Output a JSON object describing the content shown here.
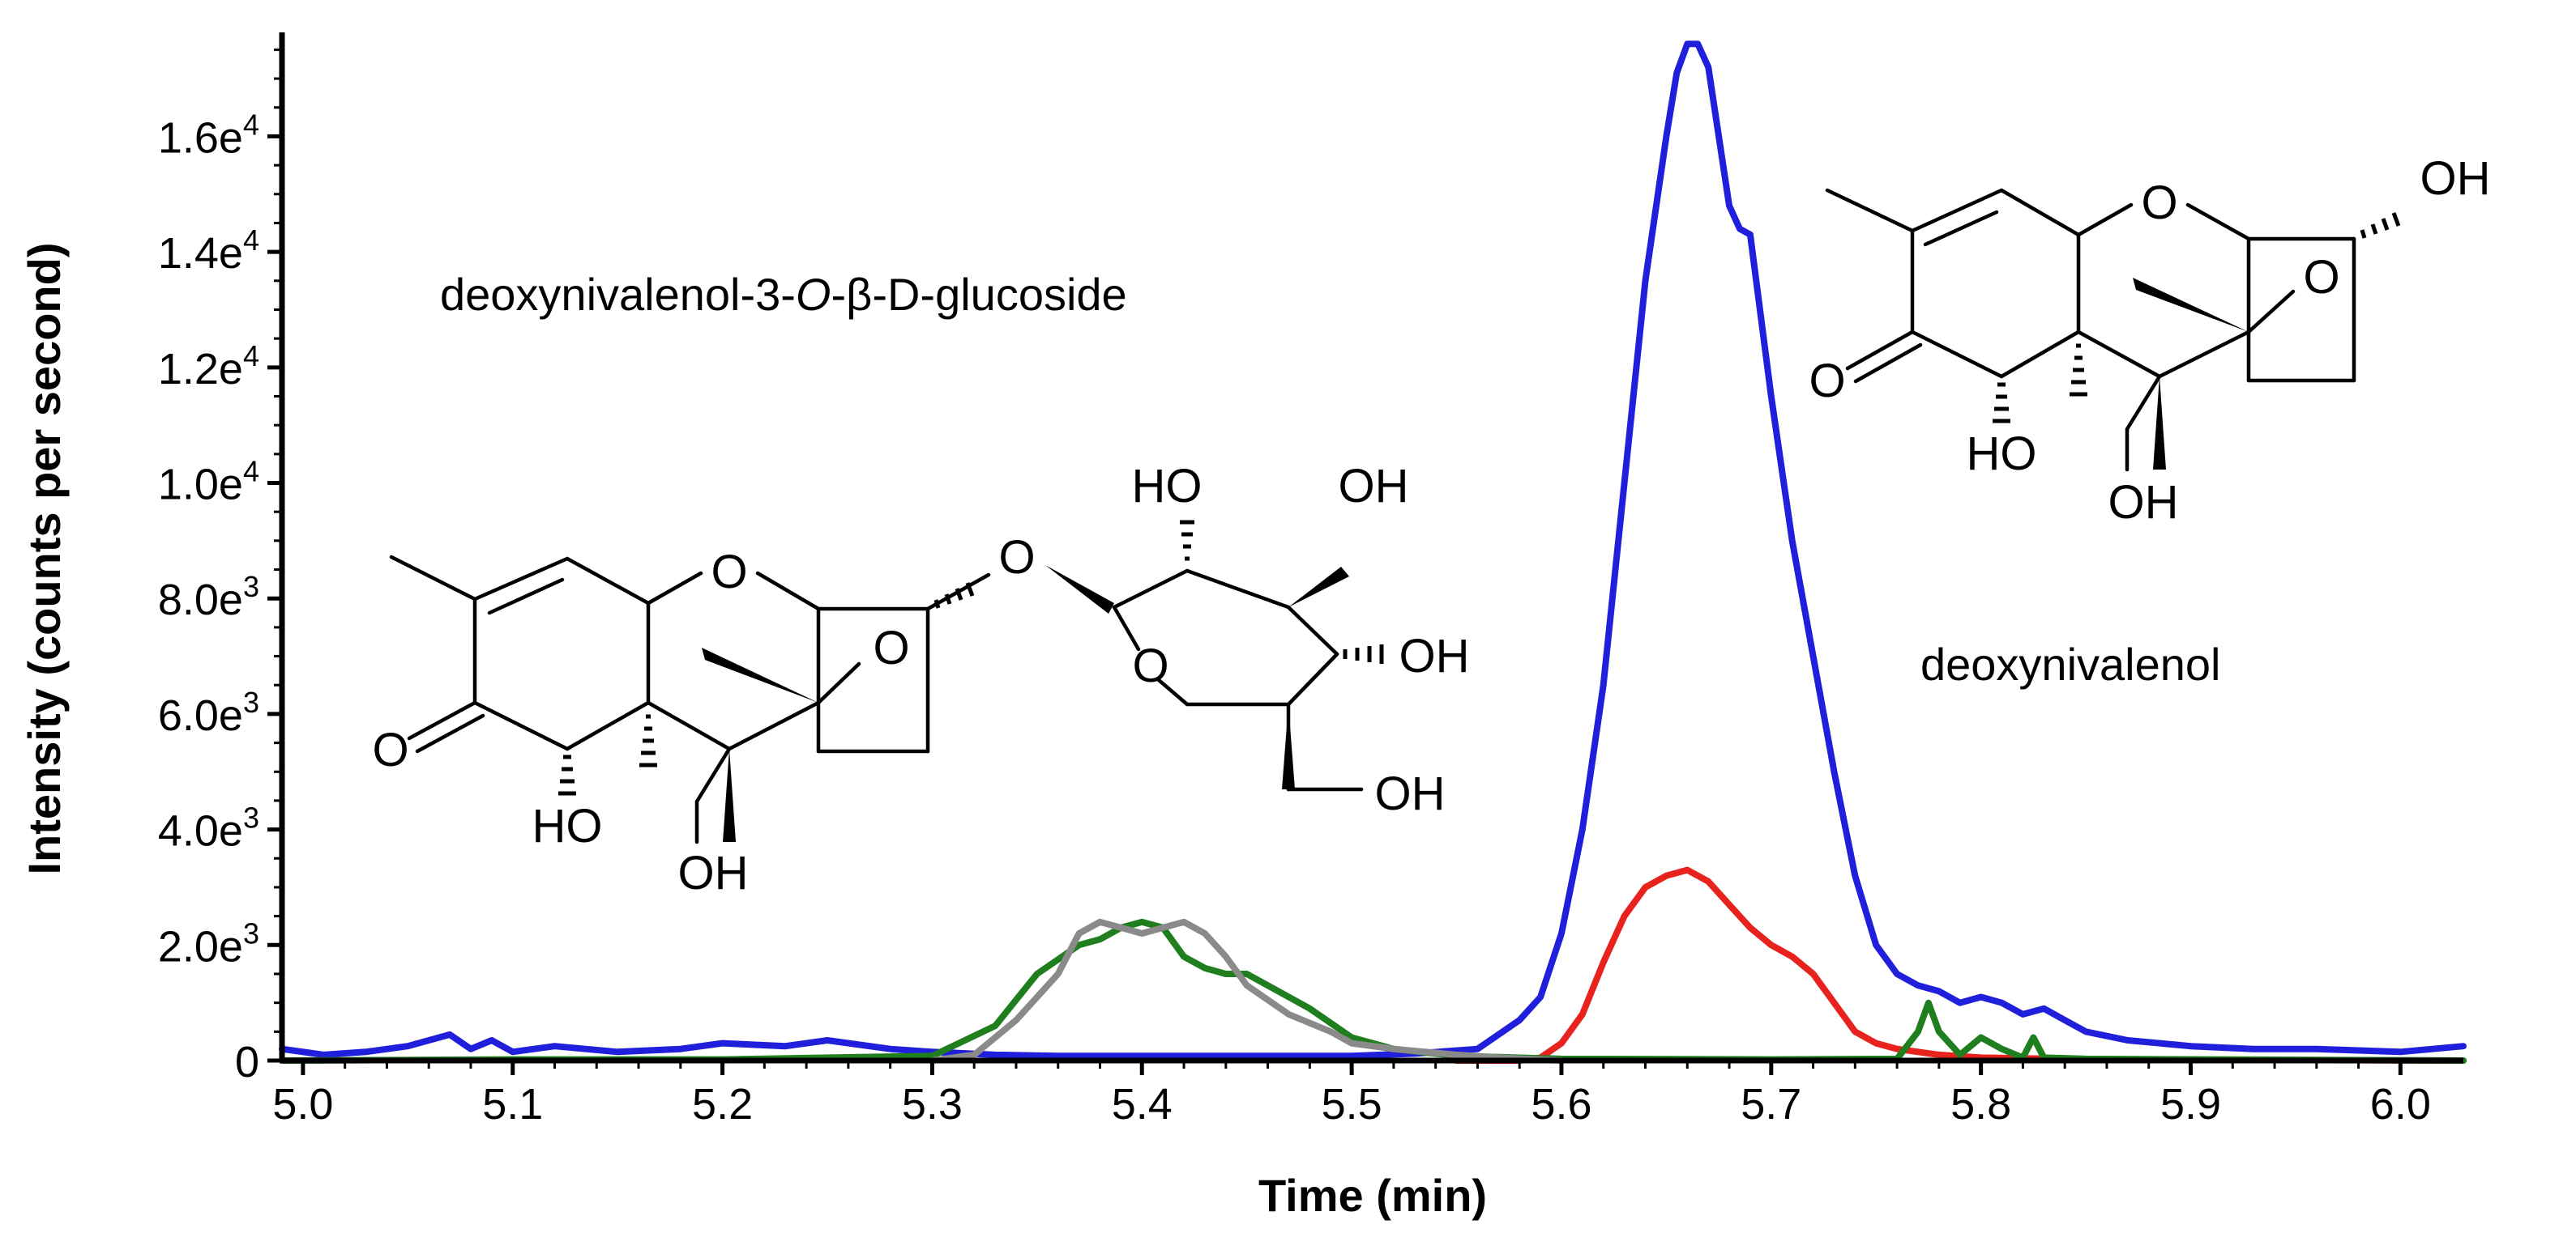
{
  "chart_data": {
    "type": "line",
    "xlabel": "Time (min)",
    "ylabel": "Intensity (counts per second)",
    "xlim": [
      4.99,
      6.03
    ],
    "ylim": [
      0,
      17800
    ],
    "x_ticks": [
      {
        "value": 5.0,
        "label": "5.0"
      },
      {
        "value": 5.1,
        "label": "5.1"
      },
      {
        "value": 5.2,
        "label": "5.2"
      },
      {
        "value": 5.3,
        "label": "5.3"
      },
      {
        "value": 5.4,
        "label": "5.4"
      },
      {
        "value": 5.5,
        "label": "5.5"
      },
      {
        "value": 5.6,
        "label": "5.6"
      },
      {
        "value": 5.7,
        "label": "5.7"
      },
      {
        "value": 5.8,
        "label": "5.8"
      },
      {
        "value": 5.9,
        "label": "5.9"
      },
      {
        "value": 6.0,
        "label": "6.0"
      }
    ],
    "y_ticks": [
      {
        "value": 0,
        "mantissa": "0",
        "exponent": ""
      },
      {
        "value": 2000,
        "mantissa": "2.0e",
        "exponent": "3"
      },
      {
        "value": 4000,
        "mantissa": "4.0e",
        "exponent": "3"
      },
      {
        "value": 6000,
        "mantissa": "6.0e",
        "exponent": "3"
      },
      {
        "value": 8000,
        "mantissa": "8.0e",
        "exponent": "3"
      },
      {
        "value": 10000,
        "mantissa": "1.0e",
        "exponent": "4"
      },
      {
        "value": 12000,
        "mantissa": "1.2e",
        "exponent": "4"
      },
      {
        "value": 14000,
        "mantissa": "1.4e",
        "exponent": "4"
      },
      {
        "value": 16000,
        "mantissa": "1.6e",
        "exponent": "4"
      }
    ],
    "grid": false,
    "legend": "none",
    "series": [
      {
        "color": "#1f1fdc",
        "x": [
          4.99,
          5.01,
          5.03,
          5.05,
          5.07,
          5.08,
          5.09,
          5.1,
          5.12,
          5.15,
          5.18,
          5.2,
          5.23,
          5.25,
          5.28,
          5.3,
          5.33,
          5.36,
          5.4,
          5.45,
          5.5,
          5.53,
          5.56,
          5.58,
          5.59,
          5.6,
          5.61,
          5.62,
          5.63,
          5.64,
          5.65,
          5.655,
          5.66,
          5.665,
          5.67,
          5.675,
          5.68,
          5.685,
          5.69,
          5.7,
          5.71,
          5.72,
          5.73,
          5.74,
          5.75,
          5.76,
          5.77,
          5.78,
          5.79,
          5.8,
          5.81,
          5.82,
          5.83,
          5.84,
          5.85,
          5.87,
          5.9,
          5.93,
          5.96,
          6.0,
          6.03
        ],
        "y": [
          200,
          100,
          150,
          250,
          450,
          200,
          350,
          150,
          250,
          150,
          200,
          300,
          250,
          350,
          200,
          150,
          100,
          80,
          80,
          80,
          80,
          120,
          200,
          700,
          1100,
          2200,
          4000,
          6500,
          10000,
          13500,
          16000,
          17100,
          17600,
          17600,
          17200,
          16000,
          14800,
          14400,
          14300,
          11500,
          9000,
          7000,
          5000,
          3200,
          2000,
          1500,
          1300,
          1200,
          1000,
          1100,
          1000,
          800,
          900,
          700,
          500,
          350,
          250,
          200,
          200,
          150,
          250
        ]
      },
      {
        "color": "#e8221c",
        "x": [
          5.55,
          5.58,
          5.59,
          5.6,
          5.61,
          5.62,
          5.63,
          5.64,
          5.65,
          5.66,
          5.67,
          5.68,
          5.69,
          5.7,
          5.71,
          5.72,
          5.73,
          5.74,
          5.75,
          5.76,
          5.77,
          5.78,
          5.8,
          5.85,
          6.03
        ],
        "y": [
          0,
          0,
          50,
          300,
          800,
          1700,
          2500,
          3000,
          3200,
          3300,
          3100,
          2700,
          2300,
          2000,
          1800,
          1500,
          1000,
          500,
          300,
          200,
          150,
          100,
          50,
          20,
          0
        ]
      },
      {
        "color": "#1f7f1f",
        "x": [
          4.99,
          5.1,
          5.2,
          5.3,
          5.33,
          5.35,
          5.37,
          5.38,
          5.39,
          5.4,
          5.41,
          5.42,
          5.43,
          5.44,
          5.45,
          5.46,
          5.48,
          5.5,
          5.52,
          5.55,
          5.6,
          5.7,
          5.76,
          5.77,
          5.775,
          5.78,
          5.79,
          5.8,
          5.81,
          5.82,
          5.825,
          5.83,
          5.85,
          6.03
        ],
        "y": [
          0,
          20,
          20,
          80,
          600,
          1500,
          2000,
          2100,
          2300,
          2400,
          2300,
          1800,
          1600,
          1500,
          1500,
          1300,
          900,
          400,
          200,
          80,
          30,
          20,
          30,
          500,
          1000,
          500,
          100,
          400,
          200,
          50,
          400,
          50,
          30,
          0
        ]
      },
      {
        "color": "#8a8a8a",
        "x": [
          5.3,
          5.32,
          5.34,
          5.36,
          5.37,
          5.38,
          5.39,
          5.4,
          5.41,
          5.42,
          5.43,
          5.44,
          5.45,
          5.47,
          5.49,
          5.5,
          5.52,
          5.55,
          5.57,
          5.6
        ],
        "y": [
          0,
          100,
          700,
          1500,
          2200,
          2400,
          2300,
          2200,
          2300,
          2400,
          2200,
          1800,
          1300,
          800,
          500,
          300,
          200,
          100,
          50,
          0
        ]
      }
    ],
    "annotations": [
      "deoxynivalenol-3-",
      "O",
      "-β-D-glucoside",
      "deoxynivalenol"
    ]
  },
  "molecules": {
    "don3g_labels": {
      "o_ring": "O",
      "o_epoxide": "O",
      "o_glyco": "O",
      "o_sugar_ring": "O",
      "ketone": "O",
      "ho_c7": "HO",
      "oh_c15": "OH",
      "ho_sugar_top": "HO",
      "oh_sugar_top_right": "OH",
      "oh_sugar_mid": "OH",
      "oh_sugar_ch2": "OH"
    },
    "don_labels": {
      "o_ring": "O",
      "o_epoxide": "O",
      "oh_c3": "OH",
      "ketone": "O",
      "ho_c7": "HO",
      "oh_c15": "OH"
    }
  }
}
